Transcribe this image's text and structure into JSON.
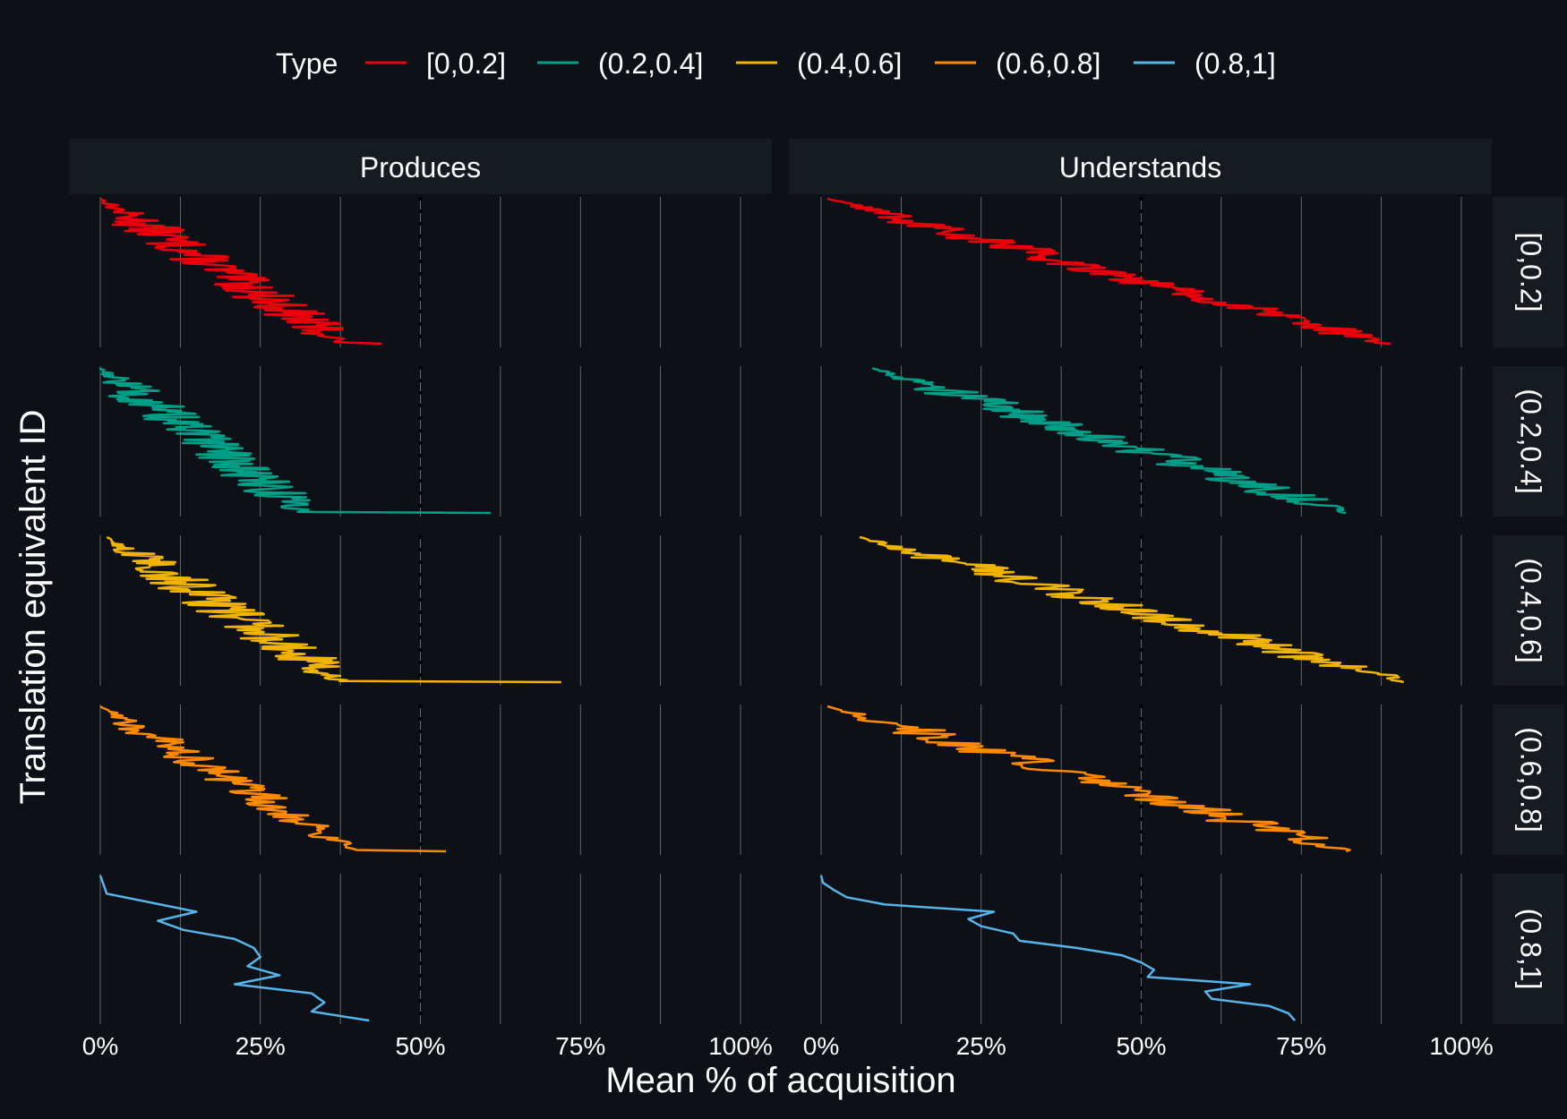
{
  "chart_data": {
    "type": "line",
    "legend": {
      "title": "Type",
      "position": "top",
      "entries": [
        {
          "label": "[0,0.2]",
          "color": "#e8000b"
        },
        {
          "label": "(0.2,0.4]",
          "color": "#009e86"
        },
        {
          "label": "(0.4,0.6]",
          "color": "#f0b400"
        },
        {
          "label": "(0.6,0.8]",
          "color": "#ff8a00"
        },
        {
          "label": "(0.8,1]",
          "color": "#56b4e9"
        }
      ]
    },
    "xlabel": "Mean % of acquisition",
    "ylabel": "Translation equivalent ID",
    "xlim": [
      0,
      100
    ],
    "x_ticks": [
      0,
      25,
      50,
      75,
      100
    ],
    "x_tick_labels": [
      "0%",
      "25%",
      "50%",
      "75%",
      "100%"
    ],
    "vertical_grid": true,
    "reference_line": {
      "x": 50,
      "style": "dashed",
      "color": "#000000"
    },
    "columns": [
      "Produces",
      "Understands"
    ],
    "rows": [
      "[0,0.2]",
      "(0.2,0.4]",
      "(0.4,0.6]",
      "(0.6,0.8]",
      "(0.8,1]"
    ],
    "panels": [
      {
        "column": "Produces",
        "row": "[0,0.2]",
        "start": 0,
        "end": 38,
        "jitter": 5,
        "max_x": 44,
        "points": 140
      },
      {
        "column": "Produces",
        "row": "(0.2,0.4]",
        "start": 0,
        "end": 32,
        "jitter": 5,
        "max_x": 61,
        "points": 140
      },
      {
        "column": "Produces",
        "row": "(0.4,0.6]",
        "start": 1,
        "end": 38,
        "jitter": 5,
        "max_x": 72,
        "points": 140
      },
      {
        "column": "Produces",
        "row": "(0.6,0.8]",
        "start": 0,
        "end": 40,
        "jitter": 4,
        "max_x": 54,
        "points": 110
      },
      {
        "column": "Produces",
        "row": "(0.8,1]",
        "values": [
          0,
          0.5,
          1,
          8,
          15,
          9,
          13,
          21,
          24,
          25,
          23,
          28,
          21,
          33,
          35,
          33,
          42
        ]
      },
      {
        "column": "Understands",
        "row": "[0,0.2]",
        "start": 1,
        "end": 88,
        "jitter": 5,
        "max_x": 89,
        "points": 150
      },
      {
        "column": "Understands",
        "row": "(0.2,0.4]",
        "start": 8,
        "end": 82,
        "jitter": 5,
        "max_x": 82,
        "points": 150
      },
      {
        "column": "Understands",
        "row": "(0.4,0.6]",
        "start": 6,
        "end": 91,
        "jitter": 5,
        "max_x": 91,
        "points": 150
      },
      {
        "column": "Understands",
        "row": "(0.6,0.8]",
        "start": 1,
        "end": 82,
        "jitter": 5,
        "max_x": 82,
        "points": 110
      },
      {
        "column": "Understands",
        "row": "(0.8,1]",
        "values": [
          0,
          0.3,
          2,
          4,
          10,
          27,
          23,
          25,
          30,
          31,
          40,
          47,
          50,
          52,
          51,
          67,
          60,
          61,
          70,
          73,
          74
        ]
      }
    ]
  }
}
